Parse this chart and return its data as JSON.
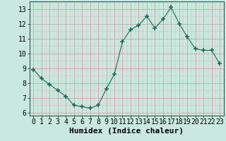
{
  "x": [
    0,
    1,
    2,
    3,
    4,
    5,
    6,
    7,
    8,
    9,
    10,
    11,
    12,
    13,
    14,
    15,
    16,
    17,
    18,
    19,
    20,
    21,
    22,
    23
  ],
  "y": [
    8.9,
    8.3,
    7.9,
    7.5,
    7.1,
    6.5,
    6.4,
    6.3,
    6.5,
    7.6,
    8.6,
    10.8,
    11.6,
    11.9,
    12.5,
    11.7,
    12.3,
    13.1,
    12.0,
    11.1,
    10.3,
    10.2,
    10.2,
    9.3
  ],
  "line_color": "#1a6b5a",
  "marker": "+",
  "marker_size": 4,
  "bg_color": "#c8e8e0",
  "grid_major_color": "#b0d8cc",
  "grid_minor_color": "#ddf0ea",
  "xlabel": "Humidex (Indice chaleur)",
  "xlabel_fontsize": 8,
  "ylim": [
    5.8,
    13.5
  ],
  "xlim": [
    -0.5,
    23.5
  ],
  "yticks": [
    6,
    7,
    8,
    9,
    10,
    11,
    12,
    13
  ],
  "xticks": [
    0,
    1,
    2,
    3,
    4,
    5,
    6,
    7,
    8,
    9,
    10,
    11,
    12,
    13,
    14,
    15,
    16,
    17,
    18,
    19,
    20,
    21,
    22,
    23
  ],
  "tick_fontsize": 7
}
